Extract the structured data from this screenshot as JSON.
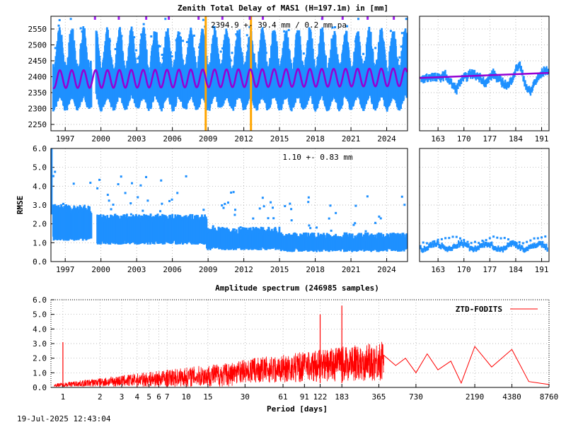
{
  "title": "Zenith Total Delay of MAS1 (H=197.1m) in [mm]",
  "timestamp": "19-Jul-2025 12:43:04",
  "colors": {
    "data": "#1e90ff",
    "model": "#9400d3",
    "event": "#ffa500",
    "spectrum": "#ff0000",
    "grid": "#a0a0a0"
  },
  "chart_data": [
    {
      "type": "scatter",
      "name_key": "ztd-timeseries",
      "ylabel": "",
      "annotation": "2394.9 +-  39.4 mm /  0.2 mm pa",
      "xlim": [
        1995.8,
        2025.75
      ],
      "ylim": [
        2230,
        2590
      ],
      "xticks": [
        "1997",
        "2000",
        "2003",
        "2006",
        "2009",
        "2012",
        "2015",
        "2018",
        "2021",
        "2024"
      ],
      "yticks": [
        "2250",
        "2300",
        "2350",
        "2400",
        "2450",
        "2500",
        "2550"
      ],
      "mean": 2394.9,
      "trend_per_year": 0.2,
      "seasonal_amplitude": 28,
      "envelope_low": 2320,
      "envelope_high": 2470,
      "event_lines_x": [
        2008.8,
        2012.6
      ],
      "data_gap": [
        1999.2,
        1999.6
      ],
      "grid": true
    },
    {
      "type": "scatter",
      "name_key": "ztd-recent",
      "xlim": [
        158,
        193
      ],
      "ylim": [
        2230,
        2590
      ],
      "xticks": [
        "163",
        "170",
        "177",
        "184",
        "191"
      ],
      "profile": [
        [
          159,
          2393
        ],
        [
          161,
          2400
        ],
        [
          163,
          2395
        ],
        [
          165,
          2405
        ],
        [
          167,
          2372
        ],
        [
          168,
          2360
        ],
        [
          169,
          2385
        ],
        [
          170,
          2395
        ],
        [
          172,
          2410
        ],
        [
          174,
          2400
        ],
        [
          175,
          2392
        ],
        [
          176,
          2378
        ],
        [
          177,
          2398
        ],
        [
          178,
          2410
        ],
        [
          179,
          2395
        ],
        [
          180,
          2385
        ],
        [
          181,
          2378
        ],
        [
          182,
          2370
        ],
        [
          183,
          2395
        ],
        [
          184,
          2420
        ],
        [
          185,
          2440
        ],
        [
          186,
          2400
        ],
        [
          187,
          2365
        ],
        [
          188,
          2350
        ],
        [
          189,
          2380
        ],
        [
          190,
          2395
        ],
        [
          191,
          2410
        ],
        [
          192,
          2420
        ]
      ],
      "trend": [
        [
          158,
          2396
        ],
        [
          193,
          2412
        ]
      ],
      "grid": true
    },
    {
      "type": "scatter",
      "name_key": "rmse-timeseries",
      "ylabel": "RMSE",
      "annotation": "1.10 +-  0.83 mm",
      "xlim": [
        1995.8,
        2025.75
      ],
      "ylim": [
        0,
        6
      ],
      "xticks": [
        "1997",
        "2000",
        "2003",
        "2006",
        "2009",
        "2012",
        "2015",
        "2018",
        "2021",
        "2024"
      ],
      "yticks": [
        "0.0",
        "1.0",
        "2.0",
        "3.0",
        "4.0",
        "5.0",
        "6.0"
      ],
      "segments": [
        {
          "from": 1996.0,
          "to": 1999.2,
          "low": 1.2,
          "high": 2.7
        },
        {
          "from": 1999.7,
          "to": 2008.9,
          "low": 1.0,
          "high": 2.2
        },
        {
          "from": 2008.9,
          "to": 2015.0,
          "low": 0.7,
          "high": 1.5
        },
        {
          "from": 2015.0,
          "to": 2025.7,
          "low": 0.6,
          "high": 1.2
        }
      ],
      "grid": true
    },
    {
      "type": "scatter",
      "name_key": "rmse-recent",
      "xlim": [
        158,
        193
      ],
      "ylim": [
        0,
        6
      ],
      "xticks": [
        "163",
        "170",
        "177",
        "184",
        "191"
      ],
      "level": 0.8,
      "grid": true
    },
    {
      "type": "line",
      "name_key": "amplitude-spectrum",
      "title": "Amplitude spectrum (246985 samples)",
      "xlabel": "Period [days]",
      "legend": "ZTD-FODITS",
      "legend_position": "top-right",
      "x_scale": "log",
      "xlim": [
        0.8,
        8760
      ],
      "ylim": [
        0,
        6
      ],
      "xticks": [
        "1",
        "2",
        "3",
        "4",
        "5",
        "6",
        "7",
        "10",
        "15",
        "30",
        "61",
        "91",
        "122",
        "183",
        "365",
        "730",
        "2190",
        "4380",
        "8760"
      ],
      "yticks": [
        "0.0",
        "1.0",
        "2.0",
        "3.0",
        "4.0",
        "5.0",
        "6.0"
      ],
      "peaks": [
        [
          1,
          3.1
        ],
        [
          122,
          5.0
        ],
        [
          183,
          5.6
        ]
      ],
      "long_period": [
        [
          400,
          2.2
        ],
        [
          500,
          1.5
        ],
        [
          600,
          2.0
        ],
        [
          730,
          1.0
        ],
        [
          900,
          2.3
        ],
        [
          1100,
          1.2
        ],
        [
          1400,
          1.8
        ],
        [
          1700,
          0.3
        ],
        [
          2190,
          2.8
        ],
        [
          3000,
          1.4
        ],
        [
          4380,
          2.6
        ],
        [
          6000,
          0.4
        ],
        [
          8760,
          0.2
        ]
      ],
      "grid": true
    }
  ]
}
